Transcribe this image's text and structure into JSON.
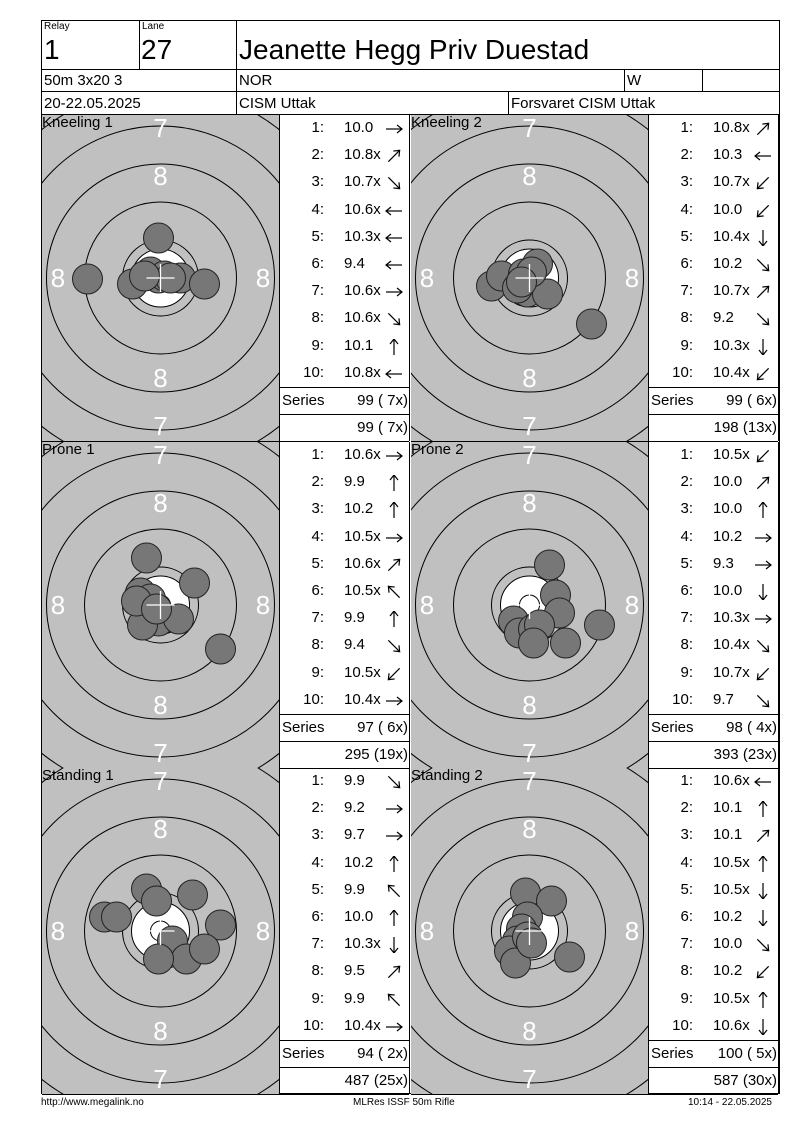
{
  "header": {
    "relay_label": "Relay",
    "relay_value": "1",
    "lane_label": "Lane",
    "lane_value": "27",
    "athlete_name": "Jeanette Hegg Priv Duestad",
    "event": "50m 3x20 3",
    "nation": "NOR",
    "gender": "W",
    "dates": "20-22.05.2025",
    "competition": "CISM Uttak",
    "club": "Forsvaret CISM Uttak"
  },
  "ring_labels": {
    "seven": "7",
    "eight": "8"
  },
  "series_label": "Series",
  "panels": [
    {
      "title": "Kneeling 1",
      "shots": [
        {
          "n": "1:",
          "v": "10.0",
          "arrow": "right"
        },
        {
          "n": "2:",
          "v": "10.8x",
          "arrow": "up-right"
        },
        {
          "n": "3:",
          "v": "10.7x",
          "arrow": "down-right"
        },
        {
          "n": "4:",
          "v": "10.6x",
          "arrow": "left"
        },
        {
          "n": "5:",
          "v": "10.3x",
          "arrow": "left"
        },
        {
          "n": "6:",
          "v": "9.4",
          "arrow": "left"
        },
        {
          "n": "7:",
          "v": "10.6x",
          "arrow": "right"
        },
        {
          "n": "8:",
          "v": "10.6x",
          "arrow": "down-right"
        },
        {
          "n": "9:",
          "v": "10.1",
          "arrow": "up"
        },
        {
          "n": "10:",
          "v": "10.8x",
          "arrow": "left"
        }
      ],
      "series": "99 ( 7x)",
      "total": "99 ( 7x)"
    },
    {
      "title": "Kneeling 2",
      "shots": [
        {
          "n": "1:",
          "v": "10.8x",
          "arrow": "up-right"
        },
        {
          "n": "2:",
          "v": "10.3",
          "arrow": "left"
        },
        {
          "n": "3:",
          "v": "10.7x",
          "arrow": "down-left"
        },
        {
          "n": "4:",
          "v": "10.0",
          "arrow": "down-left"
        },
        {
          "n": "5:",
          "v": "10.4x",
          "arrow": "down"
        },
        {
          "n": "6:",
          "v": "10.2",
          "arrow": "down-right"
        },
        {
          "n": "7:",
          "v": "10.7x",
          "arrow": "up-right"
        },
        {
          "n": "8:",
          "v": "9.2",
          "arrow": "down-right"
        },
        {
          "n": "9:",
          "v": "10.3x",
          "arrow": "down"
        },
        {
          "n": "10:",
          "v": "10.4x",
          "arrow": "down-left"
        }
      ],
      "series": "99 ( 6x)",
      "total": "198 (13x)"
    },
    {
      "title": "Prone 1",
      "shots": [
        {
          "n": "1:",
          "v": "10.6x",
          "arrow": "right"
        },
        {
          "n": "2:",
          "v": "9.9",
          "arrow": "up"
        },
        {
          "n": "3:",
          "v": "10.2",
          "arrow": "up"
        },
        {
          "n": "4:",
          "v": "10.5x",
          "arrow": "right"
        },
        {
          "n": "5:",
          "v": "10.6x",
          "arrow": "up-right"
        },
        {
          "n": "6:",
          "v": "10.5x",
          "arrow": "up-left"
        },
        {
          "n": "7:",
          "v": "9.9",
          "arrow": "up"
        },
        {
          "n": "8:",
          "v": "9.4",
          "arrow": "down-right"
        },
        {
          "n": "9:",
          "v": "10.5x",
          "arrow": "down-left"
        },
        {
          "n": "10:",
          "v": "10.4x",
          "arrow": "right"
        }
      ],
      "series": "97 ( 6x)",
      "total": "295 (19x)"
    },
    {
      "title": "Prone 2",
      "shots": [
        {
          "n": "1:",
          "v": "10.5x",
          "arrow": "down-left"
        },
        {
          "n": "2:",
          "v": "10.0",
          "arrow": "up-right"
        },
        {
          "n": "3:",
          "v": "10.0",
          "arrow": "up"
        },
        {
          "n": "4:",
          "v": "10.2",
          "arrow": "right"
        },
        {
          "n": "5:",
          "v": "9.3",
          "arrow": "right"
        },
        {
          "n": "6:",
          "v": "10.0",
          "arrow": "down"
        },
        {
          "n": "7:",
          "v": "10.3x",
          "arrow": "right"
        },
        {
          "n": "8:",
          "v": "10.4x",
          "arrow": "down-right"
        },
        {
          "n": "9:",
          "v": "10.7x",
          "arrow": "down-left"
        },
        {
          "n": "10:",
          "v": "9.7",
          "arrow": "down-right"
        }
      ],
      "series": "98 ( 4x)",
      "total": "393 (23x)"
    },
    {
      "title": "Standing 1",
      "shots": [
        {
          "n": "1:",
          "v": "9.9",
          "arrow": "down-right"
        },
        {
          "n": "2:",
          "v": "9.2",
          "arrow": "right"
        },
        {
          "n": "3:",
          "v": "9.7",
          "arrow": "right"
        },
        {
          "n": "4:",
          "v": "10.2",
          "arrow": "up"
        },
        {
          "n": "5:",
          "v": "9.9",
          "arrow": "up-left"
        },
        {
          "n": "6:",
          "v": "10.0",
          "arrow": "up"
        },
        {
          "n": "7:",
          "v": "10.3x",
          "arrow": "down"
        },
        {
          "n": "8:",
          "v": "9.5",
          "arrow": "up-right"
        },
        {
          "n": "9:",
          "v": "9.9",
          "arrow": "up-left"
        },
        {
          "n": "10:",
          "v": "10.4x",
          "arrow": "right"
        }
      ],
      "series": "94 ( 2x)",
      "total": "487 (25x)"
    },
    {
      "title": "Standing 2",
      "shots": [
        {
          "n": "1:",
          "v": "10.6x",
          "arrow": "left"
        },
        {
          "n": "2:",
          "v": "10.1",
          "arrow": "up"
        },
        {
          "n": "3:",
          "v": "10.1",
          "arrow": "up-right"
        },
        {
          "n": "4:",
          "v": "10.5x",
          "arrow": "up"
        },
        {
          "n": "5:",
          "v": "10.5x",
          "arrow": "down"
        },
        {
          "n": "6:",
          "v": "10.2",
          "arrow": "down"
        },
        {
          "n": "7:",
          "v": "10.0",
          "arrow": "down-right"
        },
        {
          "n": "8:",
          "v": "10.2",
          "arrow": "down-left"
        },
        {
          "n": "9:",
          "v": "10.5x",
          "arrow": "up"
        },
        {
          "n": "10:",
          "v": "10.6x",
          "arrow": "down"
        }
      ],
      "series": "100 ( 5x)",
      "total": "587 (30x)"
    }
  ],
  "footer": {
    "left": "http://www.megalink.no",
    "center": "MLRes ISSF 50m Rifle",
    "right": "10:14 - 22.05.2025"
  }
}
